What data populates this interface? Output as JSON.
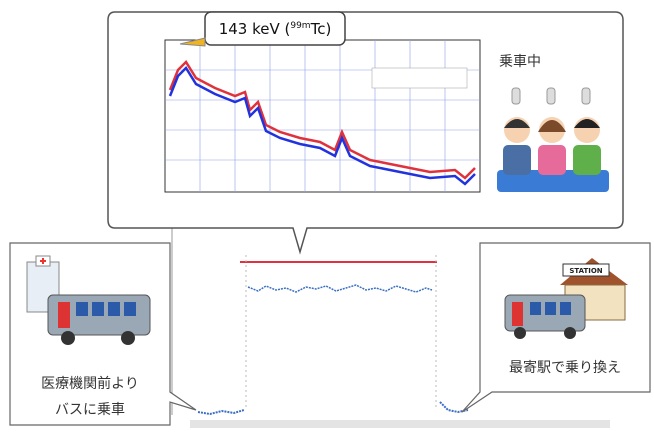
{
  "spectrum_callout": {
    "annotation": {
      "main": "143 keV (",
      "sup": "99m",
      "end": "Tc)"
    },
    "scene_label": "乗車中"
  },
  "left_callout": {
    "lines": [
      "医療機関前より",
      "バスに乗車"
    ]
  },
  "right_callout": {
    "sign": "STATION",
    "label": "最寄駅で乗り換え"
  }
}
